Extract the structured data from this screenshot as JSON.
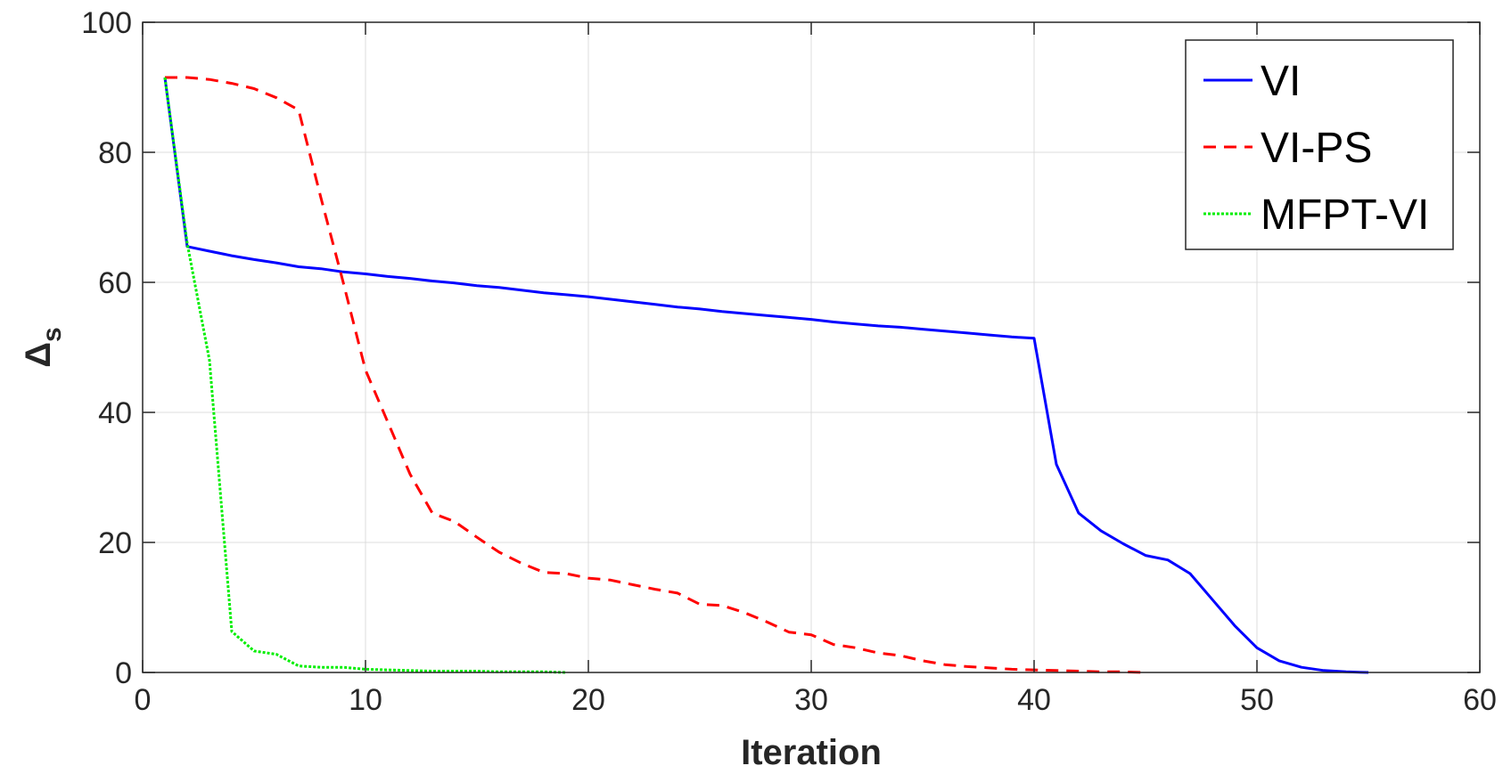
{
  "chart_data": {
    "type": "line",
    "xlabel": "Iteration",
    "ylabel": "Δs",
    "ylabel_main": "Δ",
    "ylabel_sub": "s",
    "xlim": [
      0,
      60
    ],
    "ylim": [
      0,
      100
    ],
    "xticks": [
      0,
      10,
      20,
      30,
      40,
      50,
      60
    ],
    "yticks": [
      0,
      20,
      40,
      60,
      80,
      100
    ],
    "xtick_labels": [
      "0",
      "10",
      "20",
      "30",
      "40",
      "50",
      "60"
    ],
    "ytick_labels": [
      "0",
      "20",
      "40",
      "60",
      "80",
      "100"
    ],
    "grid": true,
    "legend_position": "top-right",
    "series": [
      {
        "name": "VI",
        "color": "#0000ff",
        "style": "solid",
        "x": [
          1,
          2,
          3,
          4,
          5,
          6,
          7,
          8,
          9,
          10,
          11,
          12,
          13,
          14,
          15,
          16,
          17,
          18,
          19,
          20,
          21,
          22,
          23,
          24,
          25,
          26,
          27,
          28,
          29,
          30,
          31,
          32,
          33,
          34,
          35,
          36,
          37,
          38,
          39,
          40,
          41,
          42,
          43,
          44,
          45,
          46,
          47,
          48,
          49,
          50,
          51,
          52,
          53,
          54,
          55
        ],
        "y": [
          91.5,
          65.5,
          64.8,
          64.1,
          63.5,
          63.0,
          62.4,
          62.1,
          61.6,
          61.3,
          60.9,
          60.6,
          60.2,
          59.9,
          59.5,
          59.2,
          58.8,
          58.4,
          58.1,
          57.8,
          57.4,
          57.0,
          56.6,
          56.2,
          55.9,
          55.5,
          55.2,
          54.9,
          54.6,
          54.3,
          53.9,
          53.6,
          53.3,
          53.1,
          52.8,
          52.5,
          52.2,
          51.9,
          51.6,
          51.4,
          32.0,
          24.5,
          21.8,
          19.8,
          18.0,
          17.3,
          15.2,
          11.2,
          7.2,
          3.8,
          1.8,
          0.8,
          0.3,
          0.1,
          0.0
        ]
      },
      {
        "name": "VI-PS",
        "color": "#ff0000",
        "style": "dashed",
        "x": [
          1,
          2,
          3,
          4,
          5,
          6,
          7,
          8,
          9,
          10,
          11,
          12,
          13,
          14,
          15,
          16,
          17,
          18,
          19,
          20,
          21,
          22,
          23,
          24,
          25,
          26,
          27,
          28,
          29,
          30,
          31,
          32,
          33,
          34,
          35,
          36,
          37,
          38,
          39,
          40,
          41,
          42,
          43,
          44,
          45
        ],
        "y": [
          91.5,
          91.5,
          91.2,
          90.6,
          89.8,
          88.4,
          86.5,
          73.0,
          60.0,
          46.5,
          38.5,
          30.5,
          24.5,
          23.2,
          20.8,
          18.5,
          16.8,
          15.4,
          15.2,
          14.5,
          14.2,
          13.5,
          12.8,
          12.2,
          10.5,
          10.3,
          9.2,
          7.8,
          6.2,
          5.8,
          4.3,
          3.8,
          3.0,
          2.6,
          1.8,
          1.2,
          0.9,
          0.7,
          0.5,
          0.4,
          0.3,
          0.2,
          0.1,
          0.1,
          0.0
        ]
      },
      {
        "name": "MFPT-VI",
        "color": "#00ee00",
        "style": "dotted",
        "x": [
          1,
          2,
          3,
          4,
          5,
          6,
          7,
          8,
          9,
          10,
          11,
          12,
          13,
          14,
          15,
          16,
          17,
          18,
          19
        ],
        "y": [
          91.5,
          66.0,
          48.0,
          6.3,
          3.3,
          2.8,
          1.0,
          0.8,
          0.8,
          0.5,
          0.4,
          0.3,
          0.2,
          0.2,
          0.2,
          0.1,
          0.1,
          0.1,
          0.0
        ]
      }
    ]
  }
}
